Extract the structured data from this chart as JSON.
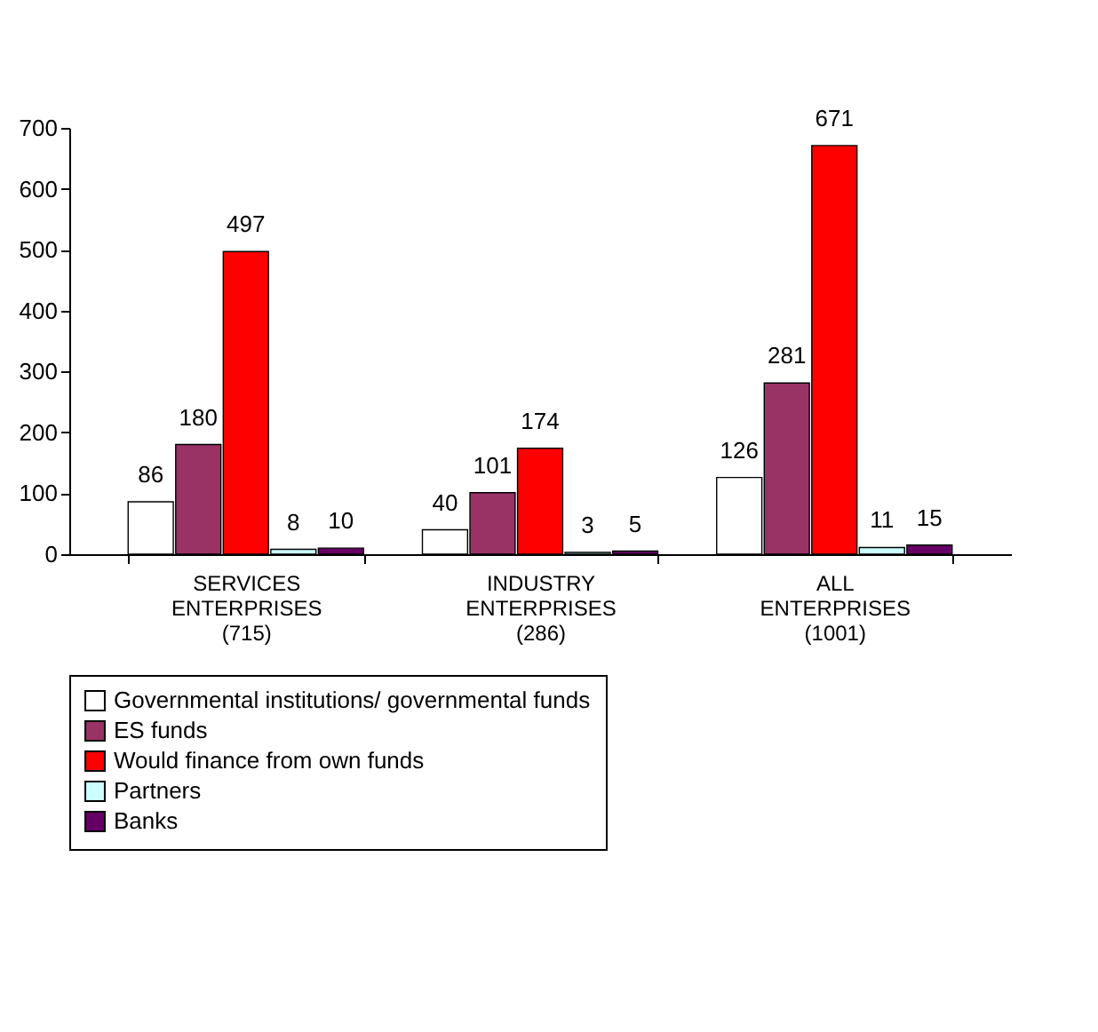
{
  "chart_data": {
    "type": "bar",
    "categories": [
      "SERVICES ENTERPRISES (715)",
      "INDUSTRY ENTERPRISES (286)",
      "ALL ENTERPRISES (1001)"
    ],
    "series": [
      {
        "name": "Governmental institutions/ governmental funds",
        "color": "#ffffff",
        "values": [
          86,
          40,
          126
        ]
      },
      {
        "name": "ES funds",
        "color": "#993366",
        "values": [
          180,
          101,
          281
        ]
      },
      {
        "name": "Would finance from own funds",
        "color": "#ff0000",
        "values": [
          497,
          174,
          671
        ]
      },
      {
        "name": "Partners",
        "color": "#ccffff",
        "values": [
          8,
          3,
          11
        ]
      },
      {
        "name": "Banks",
        "color": "#660066",
        "values": [
          10,
          5,
          15
        ]
      }
    ],
    "ylim": [
      0,
      700
    ],
    "yticks": [
      0,
      100,
      200,
      300,
      400,
      500,
      600,
      700
    ],
    "grid": false,
    "legend": "bottom",
    "data_labels": true
  }
}
